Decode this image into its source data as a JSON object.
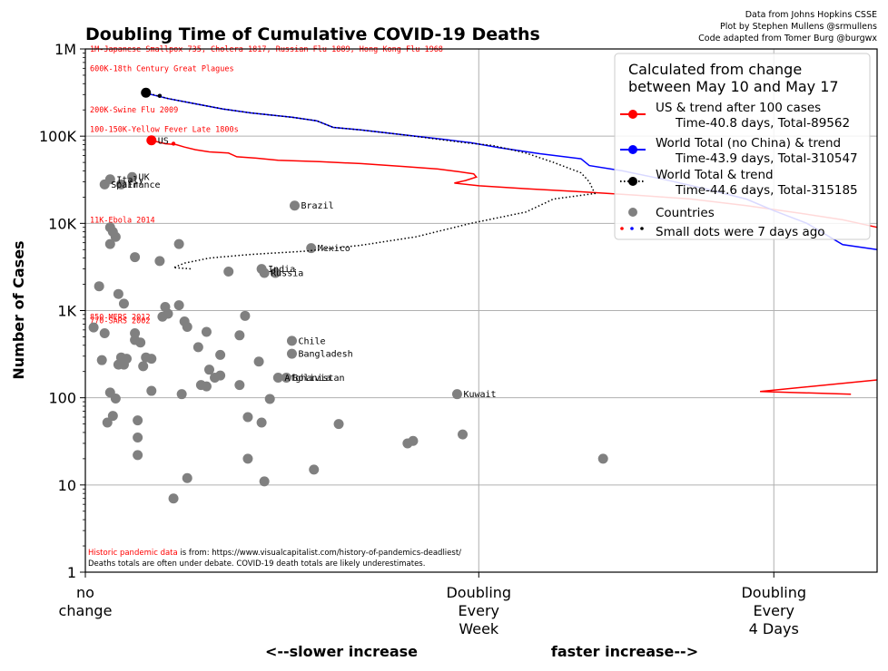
{
  "chart_data": {
    "type": "scatter",
    "title": "Doubling Time of Cumulative COVID-19 Deaths",
    "credits": [
      "Data from Johns Hopkins CSSE",
      "Plot by Stephen Mullens @srmullens",
      "Code adapted from Tomer Burg @burgwx"
    ],
    "ylabel": "Number of Cases",
    "y_scale": "log",
    "ylim": [
      1,
      1000000
    ],
    "y_ticks": [
      {
        "value": 1,
        "label": "1"
      },
      {
        "value": 10,
        "label": "10"
      },
      {
        "value": 100,
        "label": "100"
      },
      {
        "value": 1000,
        "label": "1K"
      },
      {
        "value": 10000,
        "label": "10K"
      },
      {
        "value": 100000,
        "label": "100K"
      },
      {
        "value": 1000000,
        "label": "1M"
      }
    ],
    "x_quantity": "doubling rate (1 / doubling time, per day)",
    "xlim": [
      0,
      0.2875
    ],
    "x_ticks": [
      {
        "value": 0,
        "lines": [
          "no",
          "change"
        ]
      },
      {
        "value": 0.142857,
        "lines": [
          "Doubling",
          "Every",
          "Week"
        ]
      },
      {
        "value": 0.25,
        "lines": [
          "Doubling",
          "Every",
          "4 Days"
        ]
      }
    ],
    "x_annotations": {
      "left": "<--slower increase",
      "right": "faster increase-->"
    },
    "grid": true,
    "legend": {
      "position": "top-right",
      "title": [
        "Calculated from change",
        "between May 10 and May 17"
      ],
      "entries": [
        {
          "lines": [
            "US & trend after 100 cases",
            "Time-40.8 days, Total-89562"
          ],
          "color": "#ff0000",
          "style": "line-dot"
        },
        {
          "lines": [
            "World Total (no China) & trend",
            "Time-43.9 days, Total-310547"
          ],
          "color": "#0000ff",
          "style": "line-dot"
        },
        {
          "lines": [
            "World Total & trend",
            "Time-44.6 days, Total-315185"
          ],
          "color": "#000000",
          "style": "dotted-dot"
        },
        {
          "lines": [
            "Countries"
          ],
          "color": "#808080",
          "style": "dot"
        },
        {
          "lines": [
            "Small dots were 7 days ago"
          ],
          "color": "#000000",
          "style": "small-dots"
        }
      ]
    },
    "historic_lines": [
      {
        "label": "1M-Japanese Smallpox 735, Cholera 1817, Russian Flu 1889, Hong Kong Flu 1968",
        "y": 1000000
      },
      {
        "label": "600K-18th Century Great Plagues",
        "y": 600000
      },
      {
        "label": "200K-Swine Flu 2009",
        "y": 200000
      },
      {
        "label": "100-150K-Yellow Fever Late 1800s",
        "y": 120000
      },
      {
        "label": "11K-Ebola 2014",
        "y": 11000
      },
      {
        "label": "850-MERS 2012",
        "y": 850
      },
      {
        "label": "770-SARS 2002",
        "y": 770
      }
    ],
    "series": [
      {
        "name": "US",
        "color": "#ff0000",
        "style": "solid",
        "points": [
          [
            0.024,
            89562
          ],
          [
            0.029,
            82000
          ],
          [
            0.033,
            80000
          ],
          [
            0.036,
            75000
          ],
          [
            0.04,
            70000
          ],
          [
            0.045,
            66000
          ],
          [
            0.052,
            64000
          ],
          [
            0.055,
            58000
          ],
          [
            0.062,
            56000
          ],
          [
            0.07,
            53000
          ],
          [
            0.085,
            51000
          ],
          [
            0.1,
            48500
          ],
          [
            0.115,
            45000
          ],
          [
            0.128,
            42000
          ],
          [
            0.136,
            39000
          ],
          [
            0.141,
            37000
          ],
          [
            0.142,
            34000
          ],
          [
            0.138,
            31000
          ],
          [
            0.134,
            29000
          ],
          [
            0.143,
            27000
          ],
          [
            0.16,
            25000
          ],
          [
            0.18,
            23000
          ],
          [
            0.2,
            21000
          ],
          [
            0.22,
            19000
          ],
          [
            0.24,
            16000
          ],
          [
            0.26,
            13000
          ],
          [
            0.275,
            11000
          ],
          [
            0.2875,
            9000
          ]
        ]
      },
      {
        "name": "US early",
        "color": "#ff0000",
        "style": "solid",
        "points": [
          [
            0.2875,
            160
          ],
          [
            0.245,
            118
          ],
          [
            0.278,
            110
          ]
        ]
      },
      {
        "name": "World Total (no China)",
        "color": "#0000ff",
        "style": "solid",
        "points": [
          [
            0.022,
            310547
          ],
          [
            0.03,
            270000
          ],
          [
            0.04,
            235000
          ],
          [
            0.05,
            205000
          ],
          [
            0.06,
            185000
          ],
          [
            0.075,
            165000
          ],
          [
            0.084,
            150000
          ],
          [
            0.09,
            126000
          ],
          [
            0.1,
            118000
          ],
          [
            0.115,
            104000
          ],
          [
            0.13,
            92000
          ],
          [
            0.14,
            84000
          ],
          [
            0.15,
            74000
          ],
          [
            0.165,
            63000
          ],
          [
            0.18,
            55000
          ],
          [
            0.183,
            46000
          ],
          [
            0.195,
            40000
          ],
          [
            0.21,
            32000
          ],
          [
            0.225,
            25000
          ],
          [
            0.24,
            19000
          ],
          [
            0.25,
            14000
          ],
          [
            0.262,
            10000
          ],
          [
            0.275,
            5700
          ],
          [
            0.2875,
            5000
          ]
        ]
      },
      {
        "name": "World Total",
        "color": "#000000",
        "style": "dotted",
        "points": [
          [
            0.022,
            315185
          ],
          [
            0.03,
            270000
          ],
          [
            0.04,
            235000
          ],
          [
            0.05,
            205000
          ],
          [
            0.06,
            185000
          ],
          [
            0.075,
            165000
          ],
          [
            0.084,
            150000
          ],
          [
            0.09,
            126000
          ],
          [
            0.1,
            118000
          ],
          [
            0.115,
            104000
          ],
          [
            0.128,
            92000
          ],
          [
            0.138,
            84000
          ],
          [
            0.148,
            78000
          ],
          [
            0.16,
            64000
          ],
          [
            0.17,
            50000
          ],
          [
            0.18,
            38000
          ],
          [
            0.183,
            30000
          ],
          [
            0.185,
            22000
          ],
          [
            0.17,
            19000
          ],
          [
            0.16,
            13500
          ],
          [
            0.14,
            10000
          ],
          [
            0.12,
            7000
          ],
          [
            0.1,
            5600
          ],
          [
            0.08,
            4800
          ],
          [
            0.06,
            4400
          ],
          [
            0.045,
            4000
          ],
          [
            0.036,
            3500
          ],
          [
            0.032,
            3100
          ],
          [
            0.039,
            3000
          ]
        ]
      }
    ],
    "series_markers": [
      {
        "name": "US",
        "x": 0.024,
        "y": 89562,
        "color": "#ff0000",
        "label": "US"
      },
      {
        "name": "World Total",
        "x": 0.022,
        "y": 315185,
        "color": "#000000",
        "label": ""
      }
    ],
    "small_dots": [
      {
        "x": 0.032,
        "y": 82000,
        "color": "#ff0000"
      },
      {
        "x": 0.027,
        "y": 290000,
        "color": "#0000ff"
      },
      {
        "x": 0.027,
        "y": 290000,
        "color": "#000000"
      }
    ],
    "countries": [
      {
        "x": 0.009,
        "y": 32000,
        "label": "Italy"
      },
      {
        "x": 0.017,
        "y": 34000,
        "label": "UK"
      },
      {
        "x": 0.007,
        "y": 28000,
        "label": "Spain"
      },
      {
        "x": 0.013,
        "y": 28000,
        "label": "France"
      },
      {
        "x": 0.076,
        "y": 16000,
        "label": "Brazil"
      },
      {
        "x": 0.082,
        "y": 5200,
        "label": "Mexico"
      },
      {
        "x": 0.064,
        "y": 3000,
        "label": "India"
      },
      {
        "x": 0.065,
        "y": 2700,
        "label": "Russia"
      },
      {
        "x": 0.069,
        "y": 2700,
        "label": ""
      },
      {
        "x": 0.075,
        "y": 450,
        "label": "Chile"
      },
      {
        "x": 0.075,
        "y": 320,
        "label": "Bangladesh"
      },
      {
        "x": 0.07,
        "y": 170,
        "label": "Afghanistan"
      },
      {
        "x": 0.073,
        "y": 170,
        "label": "Bolivia"
      },
      {
        "x": 0.135,
        "y": 110,
        "label": "Kuwait"
      },
      {
        "x": 0.009,
        "y": 9000,
        "label": ""
      },
      {
        "x": 0.01,
        "y": 8000,
        "label": ""
      },
      {
        "x": 0.011,
        "y": 7000,
        "label": ""
      },
      {
        "x": 0.009,
        "y": 5800,
        "label": ""
      },
      {
        "x": 0.034,
        "y": 5800,
        "label": ""
      },
      {
        "x": 0.018,
        "y": 4100,
        "label": ""
      },
      {
        "x": 0.027,
        "y": 3700,
        "label": ""
      },
      {
        "x": 0.052,
        "y": 2800,
        "label": ""
      },
      {
        "x": 0.005,
        "y": 1900,
        "label": ""
      },
      {
        "x": 0.012,
        "y": 1550,
        "label": ""
      },
      {
        "x": 0.014,
        "y": 1200,
        "label": ""
      },
      {
        "x": 0.029,
        "y": 1100,
        "label": ""
      },
      {
        "x": 0.034,
        "y": 1150,
        "label": ""
      },
      {
        "x": 0.028,
        "y": 850,
        "label": ""
      },
      {
        "x": 0.03,
        "y": 920,
        "label": ""
      },
      {
        "x": 0.058,
        "y": 870,
        "label": ""
      },
      {
        "x": 0.036,
        "y": 750,
        "label": ""
      },
      {
        "x": 0.037,
        "y": 650,
        "label": ""
      },
      {
        "x": 0.003,
        "y": 640,
        "label": ""
      },
      {
        "x": 0.007,
        "y": 550,
        "label": ""
      },
      {
        "x": 0.018,
        "y": 550,
        "label": ""
      },
      {
        "x": 0.044,
        "y": 570,
        "label": ""
      },
      {
        "x": 0.056,
        "y": 520,
        "label": ""
      },
      {
        "x": 0.018,
        "y": 460,
        "label": ""
      },
      {
        "x": 0.02,
        "y": 430,
        "label": ""
      },
      {
        "x": 0.041,
        "y": 380,
        "label": ""
      },
      {
        "x": 0.049,
        "y": 310,
        "label": ""
      },
      {
        "x": 0.013,
        "y": 290,
        "label": ""
      },
      {
        "x": 0.015,
        "y": 280,
        "label": ""
      },
      {
        "x": 0.022,
        "y": 290,
        "label": ""
      },
      {
        "x": 0.024,
        "y": 280,
        "label": ""
      },
      {
        "x": 0.006,
        "y": 270,
        "label": ""
      },
      {
        "x": 0.063,
        "y": 260,
        "label": ""
      },
      {
        "x": 0.012,
        "y": 240,
        "label": ""
      },
      {
        "x": 0.014,
        "y": 240,
        "label": ""
      },
      {
        "x": 0.021,
        "y": 230,
        "label": ""
      },
      {
        "x": 0.045,
        "y": 210,
        "label": ""
      },
      {
        "x": 0.047,
        "y": 170,
        "label": ""
      },
      {
        "x": 0.049,
        "y": 180,
        "label": ""
      },
      {
        "x": 0.042,
        "y": 140,
        "label": ""
      },
      {
        "x": 0.044,
        "y": 135,
        "label": ""
      },
      {
        "x": 0.056,
        "y": 140,
        "label": ""
      },
      {
        "x": 0.024,
        "y": 120,
        "label": ""
      },
      {
        "x": 0.009,
        "y": 115,
        "label": ""
      },
      {
        "x": 0.011,
        "y": 98,
        "label": ""
      },
      {
        "x": 0.035,
        "y": 110,
        "label": ""
      },
      {
        "x": 0.067,
        "y": 97,
        "label": ""
      },
      {
        "x": 0.01,
        "y": 62,
        "label": ""
      },
      {
        "x": 0.059,
        "y": 60,
        "label": ""
      },
      {
        "x": 0.008,
        "y": 52,
        "label": ""
      },
      {
        "x": 0.019,
        "y": 55,
        "label": ""
      },
      {
        "x": 0.064,
        "y": 52,
        "label": ""
      },
      {
        "x": 0.092,
        "y": 50,
        "label": ""
      },
      {
        "x": 0.137,
        "y": 38,
        "label": ""
      },
      {
        "x": 0.019,
        "y": 35,
        "label": ""
      },
      {
        "x": 0.117,
        "y": 30,
        "label": ""
      },
      {
        "x": 0.119,
        "y": 32,
        "label": ""
      },
      {
        "x": 0.019,
        "y": 22,
        "label": ""
      },
      {
        "x": 0.059,
        "y": 20,
        "label": ""
      },
      {
        "x": 0.188,
        "y": 20,
        "label": ""
      },
      {
        "x": 0.083,
        "y": 15,
        "label": ""
      },
      {
        "x": 0.037,
        "y": 12,
        "label": ""
      },
      {
        "x": 0.065,
        "y": 11,
        "label": ""
      },
      {
        "x": 0.032,
        "y": 7,
        "label": ""
      }
    ],
    "footnote": {
      "highlight": "Historic pandemic data",
      "line1_rest": "is from: https://www.visualcapitalist.com/history-of-pandemics-deadliest/",
      "line2": "Deaths totals are often under debate. COVID-19 death totals are likely underestimates."
    },
    "colors": {
      "countries": "#808080",
      "grid": "#b0b0b0"
    }
  }
}
